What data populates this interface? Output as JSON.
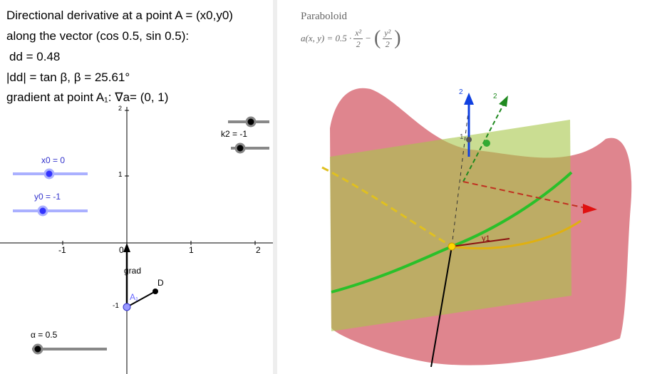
{
  "text_panel": {
    "lines": [
      "Directional derivative at a point A = (x0,y0)",
      "along the vector (cos 0.5, sin 0.5):",
      "dd = 0.48",
      "|dd| = tan β,    β = 25.61°",
      "gradient at point A₁: ∇a= (0, 1)"
    ]
  },
  "graphics_2d": {
    "x_ticks": [
      "-1",
      "0",
      "1",
      "2"
    ],
    "y_ticks": [
      "2",
      "1",
      "-1"
    ],
    "point_labels": [
      "grad",
      "D",
      "A₁"
    ],
    "sliders": [
      "x0 = 0",
      "y0 = -1",
      "k2 = -1",
      "α = 0.5"
    ]
  },
  "graphics_3d": {
    "title": "Paraboloid",
    "formula": {
      "lhs": "a(x, y) = 0.5 ·",
      "num1": "x²",
      "den1": "2",
      "minus": "−",
      "num2": "y²",
      "den2": "2"
    },
    "axis_labels": [
      "2",
      "2",
      "1",
      "y1"
    ]
  }
}
